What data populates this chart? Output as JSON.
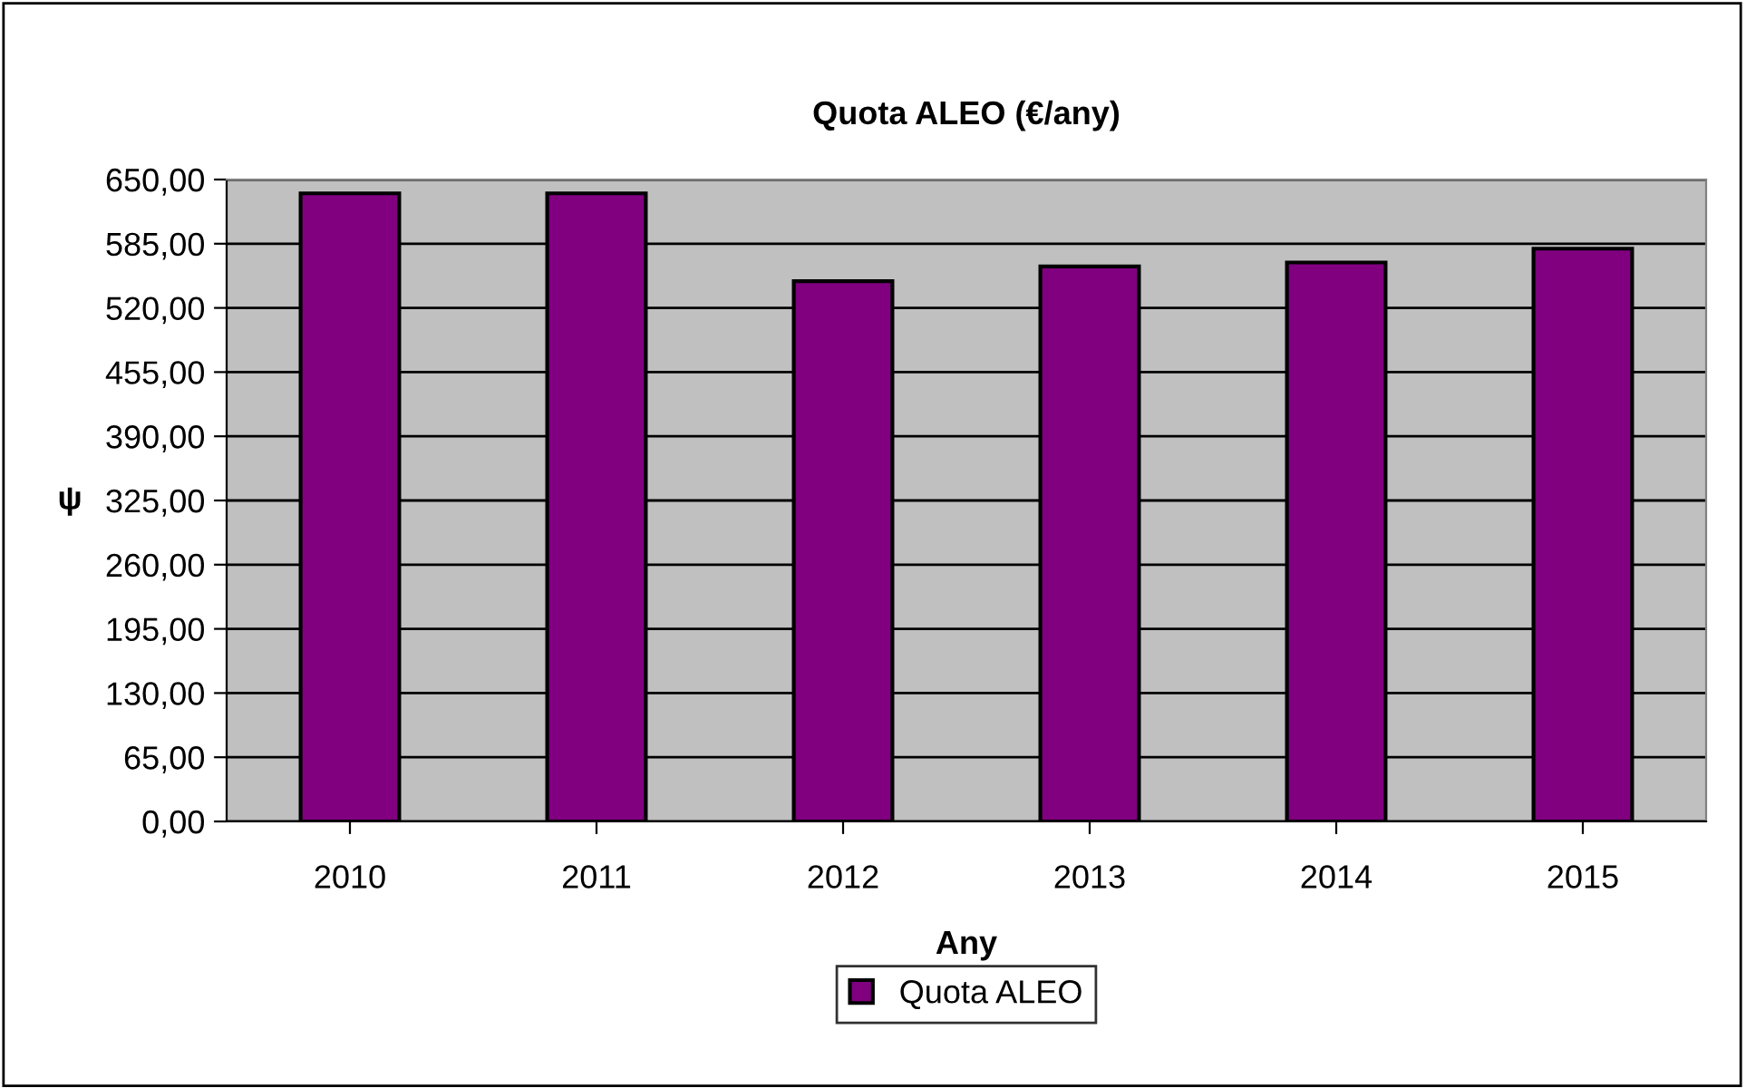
{
  "chart_data": {
    "type": "bar",
    "title": "Quota ALEO (€/any)",
    "xlabel": "Any",
    "ylabel": "ψ",
    "categories": [
      "2010",
      "2011",
      "2012",
      "2013",
      "2014",
      "2015"
    ],
    "series": [
      {
        "name": "Quota ALEO",
        "color": "#800080",
        "values": [
          636,
          636,
          547,
          562,
          566,
          580
        ]
      }
    ],
    "ylim": [
      0,
      650
    ],
    "yticks": [
      {
        "value": 0,
        "label": "0,00"
      },
      {
        "value": 65,
        "label": "65,00"
      },
      {
        "value": 130,
        "label": "130,00"
      },
      {
        "value": 195,
        "label": "195,00"
      },
      {
        "value": 260,
        "label": "260,00"
      },
      {
        "value": 325,
        "label": "325,00"
      },
      {
        "value": 390,
        "label": "390,00"
      },
      {
        "value": 455,
        "label": "455,00"
      },
      {
        "value": 520,
        "label": "520,00"
      },
      {
        "value": 585,
        "label": "585,00"
      },
      {
        "value": 650,
        "label": "650,00"
      }
    ],
    "grid": "y",
    "legend": "bottom"
  }
}
